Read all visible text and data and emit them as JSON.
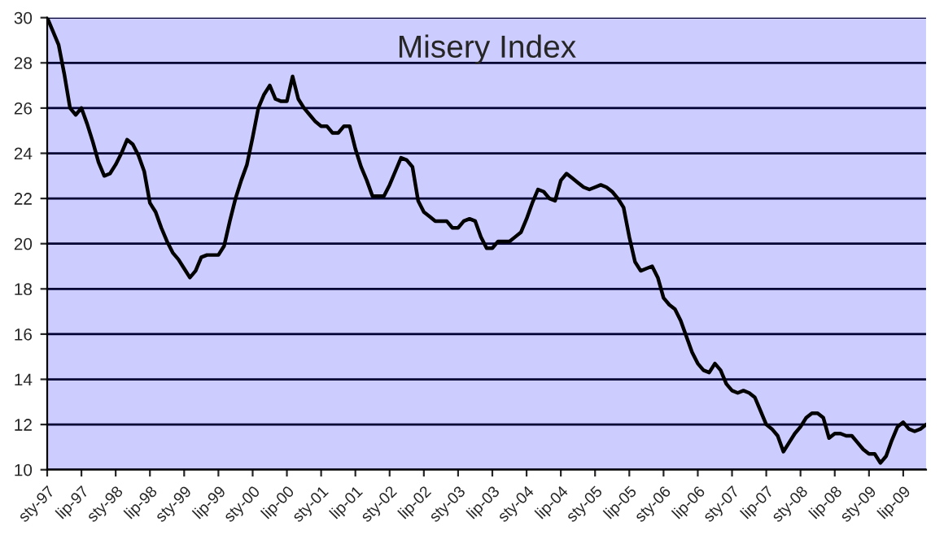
{
  "chart_data": {
    "type": "line",
    "title": "Misery Index",
    "categories": [
      "sty-97",
      null,
      null,
      null,
      null,
      null,
      "lip-97",
      null,
      null,
      null,
      null,
      null,
      "sty-98",
      null,
      null,
      null,
      null,
      null,
      "lip-98",
      null,
      null,
      null,
      null,
      null,
      "sty-99",
      null,
      null,
      null,
      null,
      null,
      "lip-99",
      null,
      null,
      null,
      null,
      null,
      "sty-00",
      null,
      null,
      null,
      null,
      null,
      "lip-00",
      null,
      null,
      null,
      null,
      null,
      "sty-01",
      null,
      null,
      null,
      null,
      null,
      "lip-01",
      null,
      null,
      null,
      null,
      null,
      "sty-02",
      null,
      null,
      null,
      null,
      null,
      "lip-02",
      null,
      null,
      null,
      null,
      null,
      "sty-03",
      null,
      null,
      null,
      null,
      null,
      "lip-03",
      null,
      null,
      null,
      null,
      null,
      "sty-04",
      null,
      null,
      null,
      null,
      null,
      "lip-04",
      null,
      null,
      null,
      null,
      null,
      "sty-05",
      null,
      null,
      null,
      null,
      null,
      "lip-05",
      null,
      null,
      null,
      null,
      null,
      "sty-06",
      null,
      null,
      null,
      null,
      null,
      "lip-06",
      null,
      null,
      null,
      null,
      null,
      "sty-07",
      null,
      null,
      null,
      null,
      null,
      "lip-07",
      null,
      null,
      null,
      null,
      null,
      "sty-08",
      null,
      null,
      null,
      null,
      null,
      "lip-08",
      null,
      null,
      null,
      null,
      null,
      "sty-09",
      null,
      null,
      null,
      null,
      null,
      "lip-09",
      null,
      null,
      null,
      null
    ],
    "series": [
      {
        "color": "#000000",
        "values": [
          30.0,
          29.4,
          28.8,
          27.5,
          26.0,
          25.7,
          26.0,
          25.3,
          24.5,
          23.6,
          23.0,
          23.1,
          23.5,
          24.0,
          24.6,
          24.4,
          23.9,
          23.2,
          21.8,
          21.4,
          20.7,
          20.1,
          19.6,
          19.3,
          18.9,
          18.5,
          18.8,
          19.4,
          19.5,
          19.5,
          19.5,
          19.9,
          21.0,
          22.0,
          22.8,
          23.5,
          24.7,
          26.0,
          26.6,
          27.0,
          26.4,
          26.3,
          26.3,
          27.4,
          26.4,
          26.0,
          25.7,
          25.4,
          25.2,
          25.2,
          24.9,
          24.9,
          25.2,
          25.2,
          24.2,
          23.4,
          22.8,
          22.1,
          22.1,
          22.1,
          22.6,
          23.2,
          23.8,
          23.7,
          23.4,
          21.9,
          21.4,
          21.2,
          21.0,
          21.0,
          21.0,
          20.7,
          20.7,
          21.0,
          21.1,
          21.0,
          20.3,
          19.8,
          19.8,
          20.1,
          20.1,
          20.1,
          20.3,
          20.5,
          21.1,
          21.8,
          22.4,
          22.3,
          22.0,
          21.9,
          22.8,
          23.1,
          22.9,
          22.7,
          22.5,
          22.4,
          22.5,
          22.6,
          22.5,
          22.3,
          22.0,
          21.6,
          20.3,
          19.2,
          18.8,
          18.9,
          19.0,
          18.5,
          17.6,
          17.3,
          17.1,
          16.6,
          15.9,
          15.2,
          14.7,
          14.4,
          14.3,
          14.7,
          14.4,
          13.8,
          13.5,
          13.4,
          13.5,
          13.4,
          13.2,
          12.6,
          12.0,
          11.8,
          11.5,
          10.8,
          11.2,
          11.6,
          11.9,
          12.3,
          12.5,
          12.5,
          12.3,
          11.4,
          11.6,
          11.6,
          11.5,
          11.5,
          11.2,
          10.9,
          10.7,
          10.7,
          10.3,
          10.6,
          11.3,
          11.9,
          12.1,
          11.8,
          11.7,
          11.8,
          12.0
        ]
      }
    ],
    "ylim": [
      10,
      30
    ],
    "yticks": [
      10,
      12,
      14,
      16,
      18,
      20,
      22,
      24,
      26,
      28,
      30
    ],
    "grid": "y",
    "marker": "none",
    "line_style": "solid"
  }
}
